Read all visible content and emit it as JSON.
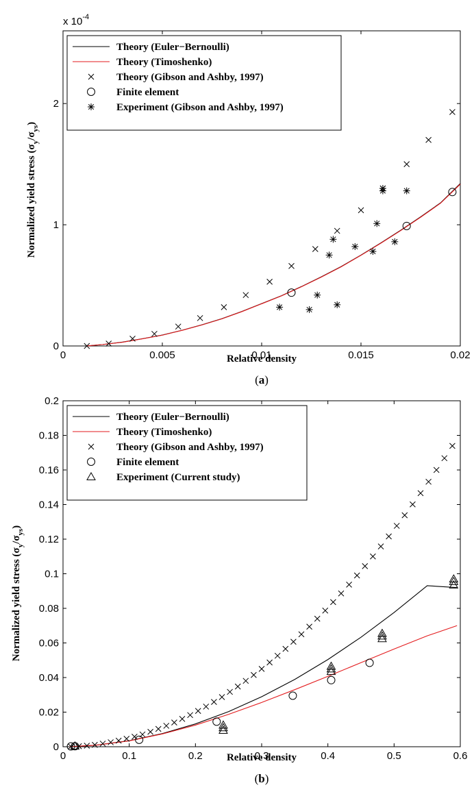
{
  "chart_data": [
    {
      "panel": "a",
      "type": "line",
      "caption_letter": "a",
      "xlabel": "Relative density",
      "ylabel": "Normalized yield stress (σ_y/σ_ys)",
      "ylabel_parts": {
        "main": "Normalized yield stress (σ",
        "sub1": "y",
        "mid": "/σ",
        "sub2": "ys",
        "end": ")"
      },
      "y_multiplier": {
        "base": "x 10",
        "exponent": "-4"
      },
      "xlim": [
        0,
        0.02
      ],
      "ylim": [
        0,
        2.6
      ],
      "xticks": [
        0,
        0.005,
        0.01,
        0.015,
        0.02
      ],
      "xtick_labels": [
        "0",
        "0.005",
        "0.01",
        "0.015",
        "0.02"
      ],
      "yticks": [
        0,
        1,
        2
      ],
      "ytick_labels": [
        "0",
        "1",
        "2"
      ],
      "grid": false,
      "legend_placement": "top-left",
      "legend": [
        {
          "label": "Theory (Euler−Bernoulli)",
          "marker": "line",
          "color": "#000000"
        },
        {
          "label": "Theory (Timoshenko)",
          "marker": "line",
          "color": "#e31a1c"
        },
        {
          "label": "Theory (Gibson and Ashby, 1997)",
          "marker": "x",
          "color": "#000000"
        },
        {
          "label": "Finite element",
          "marker": "circle",
          "color": "#000000"
        },
        {
          "label": "Experiment (Gibson and Ashby, 1997)",
          "marker": "star",
          "color": "#000000"
        }
      ],
      "series": [
        {
          "name": "Theory (Euler−Bernoulli)",
          "kind": "line",
          "color": "#000000",
          "x": [
            0.0012,
            0.002,
            0.003,
            0.004,
            0.005,
            0.006,
            0.007,
            0.008,
            0.009,
            0.01,
            0.011,
            0.012,
            0.013,
            0.014,
            0.015,
            0.016,
            0.017,
            0.018,
            0.019,
            0.02
          ],
          "y": [
            0.0,
            0.012,
            0.032,
            0.06,
            0.09,
            0.13,
            0.175,
            0.225,
            0.285,
            0.35,
            0.415,
            0.49,
            0.57,
            0.655,
            0.75,
            0.85,
            0.955,
            1.065,
            1.18,
            1.34
          ]
        },
        {
          "name": "Theory (Timoshenko)",
          "kind": "line",
          "color": "#e31a1c",
          "x": [
            0.0012,
            0.002,
            0.003,
            0.004,
            0.005,
            0.006,
            0.007,
            0.008,
            0.009,
            0.01,
            0.011,
            0.012,
            0.013,
            0.014,
            0.015,
            0.016,
            0.017,
            0.018,
            0.019,
            0.02
          ],
          "y": [
            0.0,
            0.012,
            0.031,
            0.059,
            0.089,
            0.129,
            0.174,
            0.224,
            0.283,
            0.348,
            0.413,
            0.488,
            0.568,
            0.653,
            0.748,
            0.848,
            0.952,
            1.062,
            1.177,
            1.335
          ]
        },
        {
          "name": "Theory (Gibson and Ashby, 1997)",
          "kind": "x",
          "color": "#000000",
          "x": [
            0.0012,
            0.0023,
            0.0035,
            0.0046,
            0.0058,
            0.0069,
            0.0081,
            0.0092,
            0.0104,
            0.0115,
            0.0127,
            0.0138,
            0.015,
            0.0161,
            0.0173,
            0.0184,
            0.0196
          ],
          "y": [
            0.0,
            0.02,
            0.06,
            0.1,
            0.16,
            0.23,
            0.32,
            0.42,
            0.53,
            0.66,
            0.8,
            0.95,
            1.12,
            1.3,
            1.5,
            1.7,
            1.93
          ]
        },
        {
          "name": "Finite element",
          "kind": "circle",
          "color": "#000000",
          "x": [
            0.0115,
            0.0173,
            0.0196
          ],
          "y": [
            0.44,
            0.99,
            1.27
          ]
        },
        {
          "name": "Experiment (Gibson and Ashby, 1997)",
          "kind": "star",
          "color": "#000000",
          "x": [
            0.0109,
            0.0124,
            0.0128,
            0.0134,
            0.0136,
            0.0138,
            0.0147,
            0.0156,
            0.0158,
            0.0161,
            0.0161,
            0.0167,
            0.0173
          ],
          "y": [
            0.32,
            0.3,
            0.42,
            0.75,
            0.88,
            0.34,
            0.82,
            0.78,
            1.01,
            1.28,
            1.3,
            0.86,
            1.28
          ]
        }
      ]
    },
    {
      "panel": "b",
      "type": "line",
      "caption_letter": "b",
      "xlabel": "Relative density",
      "ylabel": "Normalized yield stress (σ_y/σ_ys)",
      "ylabel_parts": {
        "main": "Normalized yield stress (σ",
        "sub1": "y",
        "mid": "/σ",
        "sub2": "ys",
        "end": ")"
      },
      "xlim": [
        0,
        0.6
      ],
      "ylim": [
        0,
        0.2
      ],
      "xticks": [
        0,
        0.1,
        0.2,
        0.3,
        0.4,
        0.5,
        0.6
      ],
      "xtick_labels": [
        "0",
        "0.1",
        "0.2",
        "0.3",
        "0.4",
        "0.5",
        "0.6"
      ],
      "yticks": [
        0,
        0.02,
        0.04,
        0.06,
        0.08,
        0.1,
        0.12,
        0.14,
        0.16,
        0.18,
        0.2
      ],
      "ytick_labels": [
        "0",
        "0.02",
        "0.04",
        "0.06",
        "0.08",
        "0.1",
        "0.12",
        "0.14",
        "0.16",
        "0.18",
        "0.2"
      ],
      "grid": false,
      "legend_placement": "top-left",
      "legend": [
        {
          "label": "Theory (Euler−Bernoulli)",
          "marker": "line",
          "color": "#000000"
        },
        {
          "label": "Theory (Timoshenko)",
          "marker": "line",
          "color": "#e31a1c"
        },
        {
          "label": "Theory (Gibson and Ashby, 1997)",
          "marker": "x",
          "color": "#000000"
        },
        {
          "label": "Finite element",
          "marker": "circle",
          "color": "#000000"
        },
        {
          "label": "Experiment (Current study)",
          "marker": "triangle",
          "color": "#000000"
        }
      ],
      "series": [
        {
          "name": "Theory (Euler−Bernoulli)",
          "kind": "line",
          "color": "#000000",
          "x": [
            0.01,
            0.05,
            0.1,
            0.15,
            0.2,
            0.25,
            0.3,
            0.35,
            0.4,
            0.45,
            0.5,
            0.55,
            0.595
          ],
          "y": [
            0.0,
            0.0009,
            0.0035,
            0.0076,
            0.0132,
            0.0203,
            0.0289,
            0.0389,
            0.0504,
            0.0633,
            0.0776,
            0.0931,
            0.092
          ]
        },
        {
          "name": "Theory (Timoshenko)",
          "kind": "line",
          "color": "#e31a1c",
          "x": [
            0.01,
            0.05,
            0.1,
            0.15,
            0.2,
            0.25,
            0.3,
            0.35,
            0.4,
            0.45,
            0.5,
            0.55,
            0.595
          ],
          "y": [
            0.0,
            0.0009,
            0.0034,
            0.0074,
            0.0125,
            0.0187,
            0.0256,
            0.033,
            0.0407,
            0.0486,
            0.0565,
            0.0641,
            0.07
          ]
        },
        {
          "name": "Theory (Gibson and Ashby, 1997)",
          "kind": "x",
          "color": "#000000",
          "x": [
            0.012,
            0.024,
            0.036,
            0.048,
            0.06,
            0.072,
            0.084,
            0.096,
            0.108,
            0.12,
            0.132,
            0.144,
            0.156,
            0.168,
            0.18,
            0.192,
            0.204,
            0.216,
            0.228,
            0.24,
            0.252,
            0.264,
            0.276,
            0.288,
            0.3,
            0.312,
            0.324,
            0.336,
            0.348,
            0.36,
            0.372,
            0.384,
            0.396,
            0.408,
            0.42,
            0.432,
            0.444,
            0.456,
            0.468,
            0.48,
            0.492,
            0.504,
            0.516,
            0.528,
            0.54,
            0.552,
            0.564,
            0.576,
            0.588
          ],
          "y": [
            0.0001,
            0.0003,
            0.0006,
            0.0011,
            0.0018,
            0.0026,
            0.0035,
            0.0046,
            0.0058,
            0.0071,
            0.0086,
            0.0103,
            0.0121,
            0.014,
            0.0161,
            0.0183,
            0.0207,
            0.0232,
            0.0259,
            0.0287,
            0.0317,
            0.0348,
            0.0381,
            0.0415,
            0.045,
            0.0487,
            0.0526,
            0.0566,
            0.0607,
            0.065,
            0.0694,
            0.074,
            0.0787,
            0.0836,
            0.0886,
            0.0937,
            0.099,
            0.1044,
            0.11,
            0.1158,
            0.1216,
            0.1277,
            0.1338,
            0.1401,
            0.1466,
            0.1532,
            0.16,
            0.1668,
            0.1739
          ]
        },
        {
          "name": "Finite element",
          "kind": "circle",
          "color": "#000000",
          "x": [
            0.012,
            0.018,
            0.115,
            0.232,
            0.347,
            0.405,
            0.463
          ],
          "y": [
            0.0002,
            0.0003,
            0.004,
            0.0145,
            0.0295,
            0.0385,
            0.0485
          ]
        },
        {
          "name": "Experiment (Current study)",
          "kind": "triangle",
          "color": "#000000",
          "x": [
            0.018,
            0.242,
            0.242,
            0.242,
            0.405,
            0.405,
            0.405,
            0.482,
            0.482,
            0.482,
            0.59,
            0.59,
            0.59
          ],
          "y": [
            0.0004,
            0.0095,
            0.011,
            0.0125,
            0.0435,
            0.045,
            0.0465,
            0.0625,
            0.064,
            0.0655,
            0.0935,
            0.0955,
            0.097
          ]
        }
      ]
    }
  ]
}
